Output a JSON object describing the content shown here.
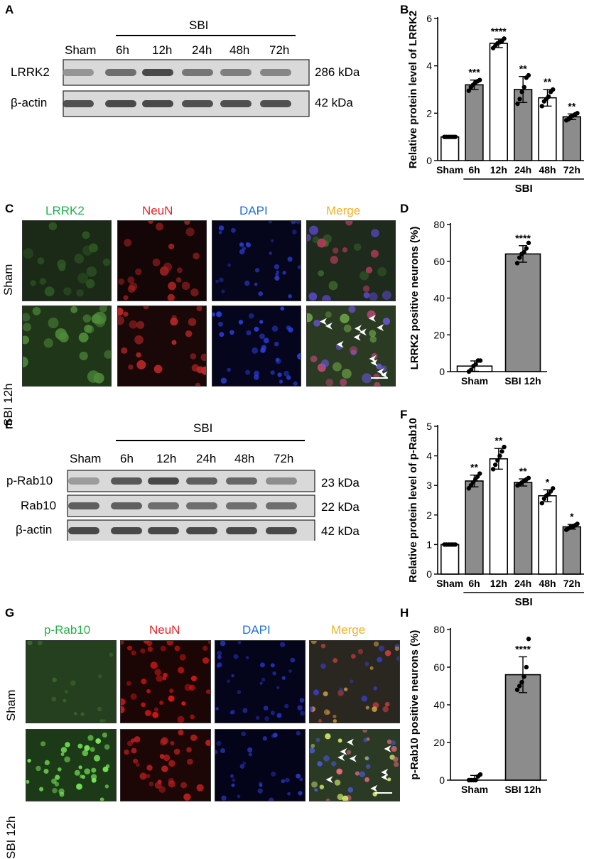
{
  "panels": {
    "A": "A",
    "B": "B",
    "C": "C",
    "D": "D",
    "E": "E",
    "F": "F",
    "G": "G",
    "H": "H"
  },
  "blots": {
    "top": {
      "group_label": "SBI",
      "lanes": [
        "Sham",
        "6h",
        "12h",
        "24h",
        "48h",
        "72h"
      ],
      "rows": [
        {
          "name": "LRRK2",
          "size": "286 kDa",
          "intensity": [
            0.35,
            0.6,
            0.85,
            0.55,
            0.5,
            0.45
          ]
        },
        {
          "name": "β-actin",
          "size": "42 kDa",
          "intensity": [
            0.8,
            0.85,
            0.85,
            0.8,
            0.8,
            0.8
          ]
        }
      ]
    },
    "bottom": {
      "group_label": "SBI",
      "lanes": [
        "Sham",
        "6h",
        "12h",
        "24h",
        "48h",
        "72h"
      ],
      "rows": [
        {
          "name": "p-Rab10",
          "size": "23 kDa",
          "intensity": [
            0.3,
            0.75,
            0.85,
            0.7,
            0.65,
            0.4
          ]
        },
        {
          "name": "Rab10",
          "size": "22 kDa",
          "intensity": [
            0.7,
            0.7,
            0.6,
            0.6,
            0.6,
            0.6
          ]
        },
        {
          "name": "β-actin",
          "size": "42 kDa",
          "intensity": [
            0.85,
            0.85,
            0.85,
            0.85,
            0.85,
            0.85
          ]
        }
      ]
    }
  },
  "micro": {
    "C": {
      "channels": [
        {
          "label": "LRRK2",
          "color": "#22b14c"
        },
        {
          "label": "NeuN",
          "color": "#e8232a"
        },
        {
          "label": "DAPI",
          "color": "#1e6fd9"
        },
        {
          "label": "Merge",
          "color": "#f0b323"
        }
      ],
      "rows": [
        "Sham",
        "SBI 12h"
      ]
    },
    "G": {
      "channels": [
        {
          "label": "p-Rab10",
          "color": "#22b14c"
        },
        {
          "label": "NeuN",
          "color": "#e8232a"
        },
        {
          "label": "DAPI",
          "color": "#1e6fd9"
        },
        {
          "label": "Merge",
          "color": "#f0b323"
        }
      ],
      "rows": [
        "Sham",
        "SBI 12h"
      ]
    }
  },
  "chart_data": [
    {
      "panel": "B",
      "type": "bar",
      "categories": [
        "Sham",
        "6h",
        "12h",
        "24h",
        "48h",
        "72h"
      ],
      "values": [
        1.0,
        3.2,
        4.95,
        3.0,
        2.65,
        1.85
      ],
      "errors": [
        0.02,
        0.2,
        0.18,
        0.55,
        0.35,
        0.12
      ],
      "points": [
        [
          1,
          1,
          1,
          1,
          1,
          1
        ],
        [
          2.95,
          3.1,
          3.2,
          3.3,
          3.35,
          3.4
        ],
        [
          4.75,
          4.85,
          4.95,
          5.0,
          5.05,
          5.15
        ],
        [
          2.4,
          2.6,
          2.9,
          3.1,
          3.5,
          3.6
        ],
        [
          2.3,
          2.5,
          2.6,
          2.7,
          2.9,
          3.0
        ],
        [
          1.7,
          1.75,
          1.85,
          1.9,
          1.95,
          2.0
        ]
      ],
      "fills": [
        "white",
        "gray",
        "white",
        "gray",
        "white",
        "gray"
      ],
      "significance": [
        "",
        "***",
        "****",
        "**",
        "**",
        "**"
      ],
      "ylabel": "Relative protein level of LRRK2",
      "ylim": [
        0,
        6
      ],
      "yticks": [
        0,
        2,
        4,
        6
      ],
      "group_label": "SBI"
    },
    {
      "panel": "D",
      "type": "bar",
      "categories": [
        "Sham",
        "SBI 12h"
      ],
      "values": [
        3,
        64
      ],
      "errors": [
        2.8,
        4.5
      ],
      "points": [
        [
          0,
          1,
          3,
          4,
          6,
          6
        ],
        [
          59,
          62,
          64,
          65,
          67,
          70
        ]
      ],
      "fills": [
        "white",
        "gray"
      ],
      "significance": [
        "",
        "****"
      ],
      "ylabel": "LRRK2 positive neurons (%)",
      "ylim": [
        0,
        80
      ],
      "yticks": [
        0,
        20,
        40,
        60,
        80
      ]
    },
    {
      "panel": "F",
      "type": "bar",
      "categories": [
        "Sham",
        "6h",
        "12h",
        "24h",
        "48h",
        "72h"
      ],
      "values": [
        1.0,
        3.15,
        3.9,
        3.1,
        2.65,
        1.6
      ],
      "errors": [
        0.02,
        0.2,
        0.35,
        0.12,
        0.2,
        0.08
      ],
      "points": [
        [
          1,
          1,
          1,
          1,
          1,
          1
        ],
        [
          2.9,
          3.0,
          3.1,
          3.2,
          3.3,
          3.4
        ],
        [
          3.55,
          3.7,
          3.85,
          4.0,
          4.15,
          4.3
        ],
        [
          3.0,
          3.05,
          3.1,
          3.15,
          3.2,
          3.25
        ],
        [
          2.4,
          2.55,
          2.65,
          2.7,
          2.8,
          2.9
        ],
        [
          1.5,
          1.55,
          1.6,
          1.6,
          1.65,
          1.7
        ]
      ],
      "fills": [
        "white",
        "gray",
        "white",
        "gray",
        "white",
        "gray"
      ],
      "significance": [
        "",
        "**",
        "**",
        "**",
        "*",
        "*"
      ],
      "ylabel": "Relative protein level of p-Rab10",
      "ylim": [
        0,
        5
      ],
      "yticks": [
        0,
        1,
        2,
        3,
        4,
        5
      ],
      "group_label": "SBI"
    },
    {
      "panel": "H",
      "type": "bar",
      "categories": [
        "Sham",
        "SBI 12h"
      ],
      "values": [
        0,
        56
      ],
      "errors": [
        2.5,
        9.5
      ],
      "points": [
        [
          0,
          0,
          0,
          0,
          2,
          3
        ],
        [
          48,
          50,
          52,
          55,
          60,
          75
        ]
      ],
      "fills": [
        "white",
        "gray"
      ],
      "significance": [
        "",
        "****"
      ],
      "ylabel": "p-Rab10 positive neurons (%)",
      "ylim": [
        0,
        80
      ],
      "yticks": [
        0,
        20,
        40,
        60,
        80
      ]
    }
  ]
}
